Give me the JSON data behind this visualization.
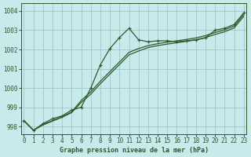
{
  "xlabel": "Graphe pression niveau de la mer (hPa)",
  "background_color": "#c8eaea",
  "grid_color": "#a0c8c8",
  "line_color": "#2d5a2d",
  "x_ticks": [
    0,
    1,
    2,
    3,
    4,
    5,
    6,
    7,
    8,
    9,
    10,
    11,
    12,
    13,
    14,
    15,
    16,
    17,
    18,
    19,
    20,
    21,
    22,
    23
  ],
  "y_ticks": [
    998,
    999,
    1000,
    1001,
    1002,
    1003,
    1004
  ],
  "ylim": [
    997.6,
    1004.4
  ],
  "xlim": [
    -0.3,
    23.3
  ],
  "line1_x": [
    0,
    1,
    2,
    3,
    4,
    5,
    6,
    7,
    8,
    9,
    10,
    11,
    12,
    13,
    14,
    15,
    16,
    17,
    18,
    19,
    20,
    21,
    22,
    23
  ],
  "line1_y": [
    998.3,
    997.8,
    998.15,
    998.4,
    998.55,
    998.85,
    999.0,
    1000.0,
    1001.2,
    1002.05,
    1002.62,
    1003.1,
    1002.5,
    1002.4,
    1002.45,
    1002.45,
    1002.4,
    1002.45,
    1002.5,
    1002.6,
    1003.0,
    1003.1,
    1003.3,
    1003.9
  ],
  "line2_x": [
    0,
    1,
    2,
    3,
    4,
    5,
    6,
    7,
    8,
    9,
    10,
    11,
    12,
    13,
    14,
    15,
    16,
    17,
    18,
    19,
    20,
    21,
    22,
    23
  ],
  "line2_y": [
    998.3,
    997.8,
    998.1,
    998.3,
    998.5,
    998.75,
    999.35,
    999.8,
    1000.35,
    1000.85,
    1001.35,
    1001.85,
    1002.05,
    1002.2,
    1002.3,
    1002.38,
    1002.45,
    1002.52,
    1002.6,
    1002.72,
    1002.88,
    1003.02,
    1003.22,
    1003.82
  ],
  "line3_x": [
    0,
    1,
    2,
    3,
    4,
    5,
    6,
    7,
    8,
    9,
    10,
    11,
    12,
    13,
    14,
    15,
    16,
    17,
    18,
    19,
    20,
    21,
    22,
    23
  ],
  "line3_y": [
    998.3,
    997.8,
    998.08,
    998.28,
    998.48,
    998.72,
    999.25,
    999.68,
    1000.22,
    1000.72,
    1001.22,
    1001.72,
    1001.92,
    1002.1,
    1002.2,
    1002.28,
    1002.35,
    1002.42,
    1002.5,
    1002.62,
    1002.78,
    1002.92,
    1003.12,
    1003.72
  ]
}
